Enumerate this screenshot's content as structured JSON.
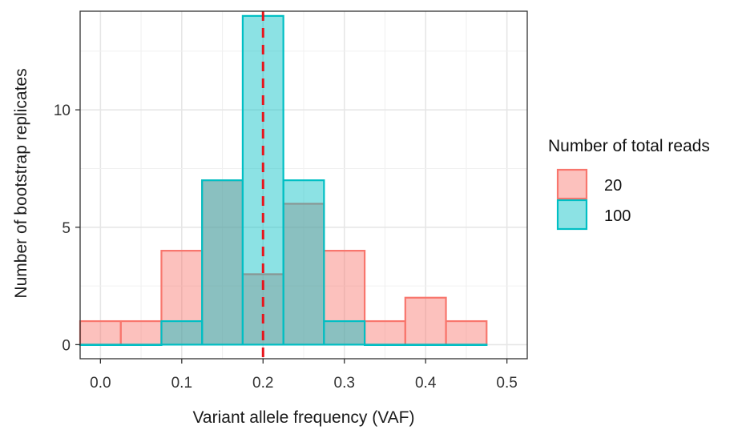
{
  "chart_data": {
    "type": "bar",
    "subtype": "overlaid-histogram",
    "title": "",
    "xlabel": "Variant allele frequency (VAF)",
    "ylabel": "Number of bootstrap replicates",
    "xlim": [
      -0.025,
      0.525
    ],
    "ylim": [
      -0.6,
      14.2
    ],
    "x_ticks": [
      {
        "value": 0.0,
        "label": "0.0"
      },
      {
        "value": 0.1,
        "label": "0.1"
      },
      {
        "value": 0.2,
        "label": "0.2"
      },
      {
        "value": 0.3,
        "label": "0.3"
      },
      {
        "value": 0.4,
        "label": "0.4"
      },
      {
        "value": 0.5,
        "label": "0.5"
      }
    ],
    "y_ticks": [
      {
        "value": 0,
        "label": "0"
      },
      {
        "value": 5,
        "label": "5"
      },
      {
        "value": 10,
        "label": "10"
      }
    ],
    "bin_width": 0.05,
    "bin_centers": [
      0.0,
      0.05,
      0.1,
      0.15,
      0.2,
      0.25,
      0.3,
      0.35,
      0.4,
      0.45
    ],
    "series": [
      {
        "name": "20",
        "values": [
          1,
          1,
          4,
          7,
          3,
          6,
          4,
          1,
          2,
          1
        ],
        "fill": "#F8766D",
        "stroke": "#F8766D"
      },
      {
        "name": "100",
        "values": [
          0,
          0,
          1,
          7,
          14,
          7,
          1,
          0,
          0,
          0
        ],
        "fill": "#00BFC4",
        "stroke": "#00BFC4"
      }
    ],
    "reference_line": {
      "x": 0.2,
      "color": "#E8141B",
      "style": "dashed"
    },
    "grid": true,
    "legend": {
      "title": "Number of total reads",
      "position": "right"
    }
  }
}
